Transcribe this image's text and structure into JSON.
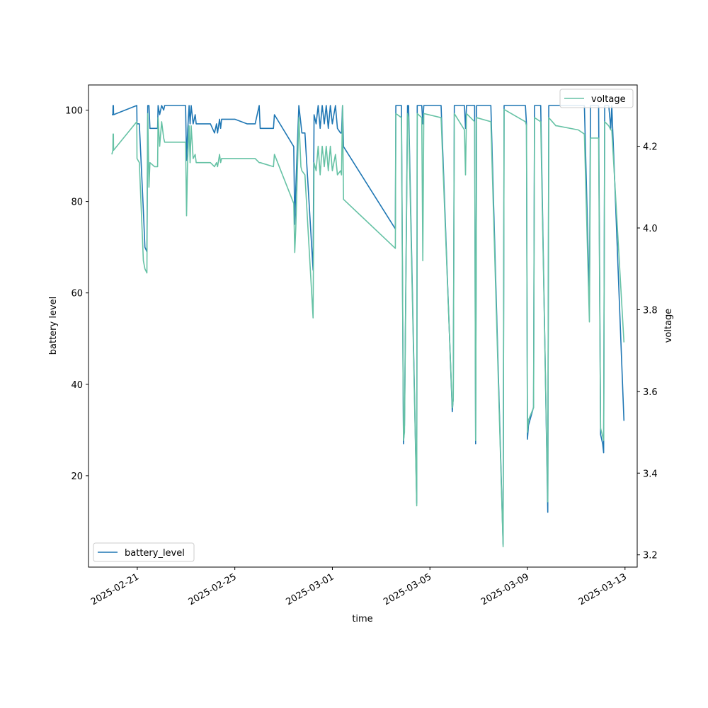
{
  "chart_data": {
    "type": "line",
    "xlabel": "time",
    "ylabel": "battery level",
    "y2label": "voltage",
    "x_ticks": [
      "2025-02-21",
      "2025-02-25",
      "2025-03-01",
      "2025-03-05",
      "2025-03-09",
      "2025-03-13"
    ],
    "xlim": [
      "2025-02-19T00:00",
      "2025-03-13T12:00"
    ],
    "ylim": [
      0,
      105.5
    ],
    "y_ticks": [
      20,
      40,
      60,
      80,
      100
    ],
    "y2lim": [
      3.17,
      4.35
    ],
    "y2_ticks": [
      3.2,
      3.4,
      3.6,
      3.8,
      4.0,
      4.2
    ],
    "grid": false,
    "series": [
      {
        "name": "battery_level",
        "axis": "left",
        "color": "#1f77b4",
        "legend_position": "lower-left",
        "points": [
          [
            "2025-02-19T23:00",
            99
          ],
          [
            "2025-02-20T00:00",
            99
          ],
          [
            "2025-02-20T00:10",
            101
          ],
          [
            "2025-02-20T00:30",
            101
          ],
          [
            "2025-02-20T00:40",
            99
          ],
          [
            "2025-02-20T23:30",
            101
          ],
          [
            "2025-02-20T23:45",
            97
          ],
          [
            "2025-02-21T02:00",
            97
          ],
          [
            "2025-02-21T06:00",
            78
          ],
          [
            "2025-02-21T07:30",
            70
          ],
          [
            "2025-02-21T09:30",
            69
          ],
          [
            "2025-02-21T10:20",
            101
          ],
          [
            "2025-02-21T11:30",
            101
          ],
          [
            "2025-02-21T12:30",
            96
          ],
          [
            "2025-02-21T17:00",
            96
          ],
          [
            "2025-02-21T20:00",
            96
          ],
          [
            "2025-02-21T20:30",
            101
          ],
          [
            "2025-02-21T22:00",
            99
          ],
          [
            "2025-02-22T00:00",
            101
          ],
          [
            "2025-02-22T02:00",
            100
          ],
          [
            "2025-02-22T03:00",
            101
          ],
          [
            "2025-02-22T23:30",
            101
          ],
          [
            "2025-02-23T00:30",
            89
          ],
          [
            "2025-02-23T01:30",
            95
          ],
          [
            "2025-02-23T03:00",
            101
          ],
          [
            "2025-02-23T04:00",
            97
          ],
          [
            "2025-02-23T05:00",
            101
          ],
          [
            "2025-02-23T07:00",
            97
          ],
          [
            "2025-02-23T09:00",
            99
          ],
          [
            "2025-02-23T10:00",
            97
          ],
          [
            "2025-02-24T00:00",
            97
          ],
          [
            "2025-02-24T04:00",
            95
          ],
          [
            "2025-02-24T06:00",
            97
          ],
          [
            "2025-02-24T07:00",
            95
          ],
          [
            "2025-02-24T09:00",
            98
          ],
          [
            "2025-02-24T10:00",
            96
          ],
          [
            "2025-02-24T11:00",
            98
          ],
          [
            "2025-02-25T00:00",
            98
          ],
          [
            "2025-02-25T12:00",
            97
          ],
          [
            "2025-02-25T20:00",
            97
          ],
          [
            "2025-02-26T00:00",
            101
          ],
          [
            "2025-02-26T01:00",
            96
          ],
          [
            "2025-02-26T14:00",
            96
          ],
          [
            "2025-02-26T15:00",
            99
          ],
          [
            "2025-02-27T10:00",
            92
          ],
          [
            "2025-02-27T11:00",
            75
          ],
          [
            "2025-02-27T12:00",
            83
          ],
          [
            "2025-02-27T15:00",
            101
          ],
          [
            "2025-02-27T17:00",
            97
          ],
          [
            "2025-02-27T18:00",
            95
          ],
          [
            "2025-02-27T21:00",
            95
          ],
          [
            "2025-02-28T05:00",
            65
          ],
          [
            "2025-02-28T06:00",
            99
          ],
          [
            "2025-02-28T08:00",
            97
          ],
          [
            "2025-02-28T10:00",
            101
          ],
          [
            "2025-02-28T12:00",
            96
          ],
          [
            "2025-02-28T14:00",
            101
          ],
          [
            "2025-02-28T16:00",
            97
          ],
          [
            "2025-02-28T18:00",
            101
          ],
          [
            "2025-02-28T20:00",
            96
          ],
          [
            "2025-02-28T22:00",
            101
          ],
          [
            "2025-03-01T00:00",
            97
          ],
          [
            "2025-03-01T03:00",
            101
          ],
          [
            "2025-03-01T05:00",
            96
          ],
          [
            "2025-03-01T08:00",
            95
          ],
          [
            "2025-03-01T09:00",
            95
          ],
          [
            "2025-03-01T10:00",
            101
          ],
          [
            "2025-03-01T11:00",
            92
          ],
          [
            "2025-03-03T14:00",
            74
          ],
          [
            "2025-03-03T14:30",
            101
          ],
          [
            "2025-03-03T20:00",
            101
          ],
          [
            "2025-03-03T22:00",
            27
          ],
          [
            "2025-03-03T23:00",
            31
          ],
          [
            "2025-03-04T02:00",
            101
          ],
          [
            "2025-03-04T03:00",
            101
          ],
          [
            "2025-03-04T11:00",
            14
          ],
          [
            "2025-03-04T11:30",
            101
          ],
          [
            "2025-03-04T16:00",
            101
          ],
          [
            "2025-03-04T17:00",
            97
          ],
          [
            "2025-03-04T18:00",
            101
          ],
          [
            "2025-03-05T11:00",
            101
          ],
          [
            "2025-03-05T22:00",
            34
          ],
          [
            "2025-03-05T23:00",
            37
          ],
          [
            "2025-03-06T00:00",
            101
          ],
          [
            "2025-03-06T10:00",
            101
          ],
          [
            "2025-03-06T11:00",
            96
          ],
          [
            "2025-03-06T12:00",
            101
          ],
          [
            "2025-03-06T20:00",
            101
          ],
          [
            "2025-03-06T21:00",
            27
          ],
          [
            "2025-03-06T22:00",
            101
          ],
          [
            "2025-03-07T12:00",
            101
          ],
          [
            "2025-03-08T00:00",
            5
          ],
          [
            "2025-03-08T01:00",
            101
          ],
          [
            "2025-03-08T22:00",
            101
          ],
          [
            "2025-03-08T23:00",
            97
          ],
          [
            "2025-03-09T00:00",
            28
          ],
          [
            "2025-03-09T01:00",
            31
          ],
          [
            "2025-03-09T06:00",
            35
          ],
          [
            "2025-03-09T07:00",
            101
          ],
          [
            "2025-03-09T13:00",
            101
          ],
          [
            "2025-03-09T20:00",
            12
          ],
          [
            "2025-03-09T21:00",
            101
          ],
          [
            "2025-03-10T04:00",
            101
          ],
          [
            "2025-03-10T05:00",
            101
          ],
          [
            "2025-03-11T02:00",
            101
          ],
          [
            "2025-03-11T08:00",
            101
          ],
          [
            "2025-03-11T13:00",
            58
          ],
          [
            "2025-03-11T14:00",
            101
          ],
          [
            "2025-03-11T22:00",
            101
          ],
          [
            "2025-03-12T00:00",
            29
          ],
          [
            "2025-03-12T02:00",
            27
          ],
          [
            "2025-03-12T03:00",
            25
          ],
          [
            "2025-03-12T04:00",
            101
          ],
          [
            "2025-03-12T08:00",
            101
          ],
          [
            "2025-03-12T10:00",
            96
          ],
          [
            "2025-03-12T11:00",
            101
          ],
          [
            "2025-03-12T23:00",
            32
          ]
        ]
      },
      {
        "name": "voltage",
        "axis": "right",
        "color": "#66c2a5",
        "legend_position": "upper-right",
        "points": [
          [
            "2025-02-19T23:00",
            4.18
          ],
          [
            "2025-02-20T00:00",
            4.19
          ],
          [
            "2025-02-20T00:10",
            4.23
          ],
          [
            "2025-02-20T00:30",
            4.23
          ],
          [
            "2025-02-20T00:40",
            4.19
          ],
          [
            "2025-02-20T23:30",
            4.26
          ],
          [
            "2025-02-20T23:45",
            4.17
          ],
          [
            "2025-02-21T02:00",
            4.16
          ],
          [
            "2025-02-21T06:00",
            3.92
          ],
          [
            "2025-02-21T07:30",
            3.9
          ],
          [
            "2025-02-21T09:30",
            3.89
          ],
          [
            "2025-02-21T10:20",
            4.28
          ],
          [
            "2025-02-21T11:30",
            4.1
          ],
          [
            "2025-02-21T12:30",
            4.16
          ],
          [
            "2025-02-21T17:00",
            4.15
          ],
          [
            "2025-02-21T20:00",
            4.15
          ],
          [
            "2025-02-21T20:30",
            4.27
          ],
          [
            "2025-02-21T22:00",
            4.2
          ],
          [
            "2025-02-22T00:00",
            4.26
          ],
          [
            "2025-02-22T02:00",
            4.22
          ],
          [
            "2025-02-22T03:00",
            4.21
          ],
          [
            "2025-02-22T23:30",
            4.21
          ],
          [
            "2025-02-23T00:30",
            4.03
          ],
          [
            "2025-02-23T01:30",
            4.16
          ],
          [
            "2025-02-23T03:00",
            4.25
          ],
          [
            "2025-02-23T04:00",
            4.16
          ],
          [
            "2025-02-23T05:00",
            4.25
          ],
          [
            "2025-02-23T07:00",
            4.17
          ],
          [
            "2025-02-23T09:00",
            4.18
          ],
          [
            "2025-02-23T10:00",
            4.16
          ],
          [
            "2025-02-24T00:00",
            4.16
          ],
          [
            "2025-02-24T04:00",
            4.15
          ],
          [
            "2025-02-24T06:00",
            4.16
          ],
          [
            "2025-02-24T07:00",
            4.15
          ],
          [
            "2025-02-24T09:00",
            4.18
          ],
          [
            "2025-02-24T10:00",
            4.16
          ],
          [
            "2025-02-24T11:00",
            4.17
          ],
          [
            "2025-02-25T00:00",
            4.17
          ],
          [
            "2025-02-25T12:00",
            4.17
          ],
          [
            "2025-02-25T20:00",
            4.17
          ],
          [
            "2025-02-26T00:00",
            4.16
          ],
          [
            "2025-02-26T01:00",
            4.16
          ],
          [
            "2025-02-26T14:00",
            4.15
          ],
          [
            "2025-02-26T15:00",
            4.18
          ],
          [
            "2025-02-27T10:00",
            4.06
          ],
          [
            "2025-02-27T11:00",
            3.94
          ],
          [
            "2025-02-27T12:00",
            4.0
          ],
          [
            "2025-02-27T15:00",
            4.27
          ],
          [
            "2025-02-27T17:00",
            4.15
          ],
          [
            "2025-02-27T18:00",
            4.14
          ],
          [
            "2025-02-27T21:00",
            4.13
          ],
          [
            "2025-02-28T05:00",
            3.78
          ],
          [
            "2025-02-28T06:00",
            4.16
          ],
          [
            "2025-02-28T08:00",
            4.14
          ],
          [
            "2025-02-28T10:00",
            4.2
          ],
          [
            "2025-02-28T12:00",
            4.13
          ],
          [
            "2025-02-28T14:00",
            4.2
          ],
          [
            "2025-02-28T16:00",
            4.15
          ],
          [
            "2025-02-28T18:00",
            4.2
          ],
          [
            "2025-02-28T20:00",
            4.14
          ],
          [
            "2025-02-28T22:00",
            4.2
          ],
          [
            "2025-03-01T00:00",
            4.14
          ],
          [
            "2025-03-01T03:00",
            4.18
          ],
          [
            "2025-03-01T05:00",
            4.13
          ],
          [
            "2025-03-01T08:00",
            4.14
          ],
          [
            "2025-03-01T09:00",
            4.13
          ],
          [
            "2025-03-01T10:00",
            4.3
          ],
          [
            "2025-03-01T11:00",
            4.07
          ],
          [
            "2025-03-03T14:00",
            3.95
          ],
          [
            "2025-03-03T14:30",
            4.28
          ],
          [
            "2025-03-03T20:00",
            4.27
          ],
          [
            "2025-03-03T22:00",
            3.48
          ],
          [
            "2025-03-03T23:00",
            3.5
          ],
          [
            "2025-03-04T02:00",
            4.28
          ],
          [
            "2025-03-04T03:00",
            4.27
          ],
          [
            "2025-03-04T11:00",
            3.32
          ],
          [
            "2025-03-04T11:30",
            4.28
          ],
          [
            "2025-03-04T16:00",
            4.27
          ],
          [
            "2025-03-04T17:00",
            3.92
          ],
          [
            "2025-03-04T18:00",
            4.28
          ],
          [
            "2025-03-05T11:00",
            4.27
          ],
          [
            "2025-03-05T22:00",
            3.56
          ],
          [
            "2025-03-05T23:00",
            3.58
          ],
          [
            "2025-03-06T00:00",
            4.28
          ],
          [
            "2025-03-06T10:00",
            4.24
          ],
          [
            "2025-03-06T11:00",
            4.13
          ],
          [
            "2025-03-06T12:00",
            4.28
          ],
          [
            "2025-03-06T20:00",
            4.26
          ],
          [
            "2025-03-06T21:00",
            3.48
          ],
          [
            "2025-03-06T22:00",
            4.27
          ],
          [
            "2025-03-07T12:00",
            4.26
          ],
          [
            "2025-03-08T00:00",
            3.22
          ],
          [
            "2025-03-08T01:00",
            4.29
          ],
          [
            "2025-03-08T22:00",
            4.26
          ],
          [
            "2025-03-08T23:00",
            4.25
          ],
          [
            "2025-03-09T00:00",
            3.5
          ],
          [
            "2025-03-09T01:00",
            3.53
          ],
          [
            "2025-03-09T06:00",
            3.56
          ],
          [
            "2025-03-09T07:00",
            4.27
          ],
          [
            "2025-03-09T13:00",
            4.26
          ],
          [
            "2025-03-09T20:00",
            3.33
          ],
          [
            "2025-03-09T21:00",
            4.27
          ],
          [
            "2025-03-10T04:00",
            4.25
          ],
          [
            "2025-03-10T05:00",
            4.25
          ],
          [
            "2025-03-11T02:00",
            4.24
          ],
          [
            "2025-03-11T08:00",
            4.23
          ],
          [
            "2025-03-11T13:00",
            3.77
          ],
          [
            "2025-03-11T14:00",
            4.22
          ],
          [
            "2025-03-11T22:00",
            4.22
          ],
          [
            "2025-03-12T00:00",
            3.51
          ],
          [
            "2025-03-12T02:00",
            3.49
          ],
          [
            "2025-03-12T03:00",
            3.48
          ],
          [
            "2025-03-12T04:00",
            4.26
          ],
          [
            "2025-03-12T08:00",
            4.25
          ],
          [
            "2025-03-12T10:00",
            4.24
          ],
          [
            "2025-03-12T11:00",
            4.24
          ],
          [
            "2025-03-12T23:00",
            3.72
          ]
        ]
      }
    ]
  }
}
